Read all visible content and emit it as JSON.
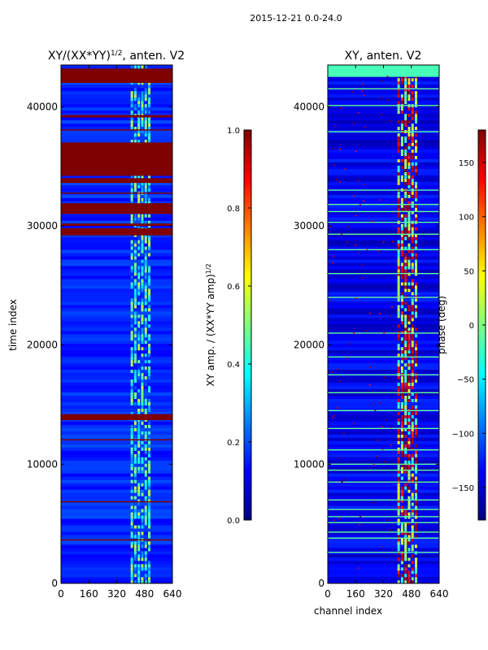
{
  "figure": {
    "suptitle": "2015-12-21 0.0-24.0"
  },
  "colors": {
    "jet": [
      "#00007f",
      "#0000ff",
      "#007fff",
      "#00ffff",
      "#7fff7f",
      "#ffff00",
      "#ff7f00",
      "#ff0000",
      "#7f0000"
    ],
    "background": "#ffffff"
  },
  "chart_data": [
    {
      "type": "heatmap",
      "title": "XY/(XX*YY)",
      "title_sup": "1/2",
      "title_suffix": ", anten. V2",
      "xlabel": "",
      "ylabel": "time index",
      "xlim": [
        0,
        640
      ],
      "ylim": [
        0,
        43500
      ],
      "xticks": [
        0,
        160,
        320,
        480,
        640
      ],
      "yticks": [
        0,
        10000,
        20000,
        30000,
        40000
      ],
      "base_level": 0.12,
      "bright_channel_range": [
        400,
        520
      ],
      "bright_level": 0.45,
      "saturated_bands": [
        [
          42000,
          43200
        ],
        [
          39100,
          39300
        ],
        [
          38000,
          38100
        ],
        [
          35000,
          35100
        ],
        [
          34200,
          37000
        ],
        [
          33600,
          34000
        ],
        [
          32700,
          32800
        ],
        [
          31000,
          31900
        ],
        [
          30000,
          30200
        ],
        [
          29200,
          29800
        ],
        [
          13700,
          14200
        ],
        [
          12000,
          12100
        ],
        [
          6800,
          6900
        ],
        [
          3600,
          3700
        ]
      ],
      "colorbar": {
        "label": "XY amp. / (XX*YY amp)",
        "label_sup": "1/2",
        "range": [
          0.0,
          1.0
        ],
        "ticks": [
          "0.0",
          "0.2",
          "0.4",
          "0.6",
          "0.8",
          "1.0"
        ]
      }
    },
    {
      "type": "heatmap",
      "title": "XY, anten. V2",
      "xlabel": "channel index",
      "ylabel": "",
      "xlim": [
        0,
        640
      ],
      "ylim": [
        0,
        43500
      ],
      "xticks": [
        0,
        160,
        320,
        480,
        640
      ],
      "yticks": [
        0,
        10000,
        20000,
        30000,
        40000
      ],
      "base_level": -150,
      "bright_channel_range": [
        400,
        520
      ],
      "bright_level": 40,
      "flag_lines": [
        41500,
        40100,
        37900,
        33000,
        31800,
        31200,
        30300,
        29300,
        28000,
        26000,
        24000,
        21000,
        19000,
        17500,
        16000,
        14500,
        13000,
        11200,
        10000,
        9500,
        8500,
        7000,
        6200,
        5600,
        5100,
        4300,
        3800,
        2600
      ],
      "top_band": [
        42500,
        43500
      ],
      "colorbar": {
        "label": "phase (deg)",
        "range": [
          -180,
          180
        ],
        "ticks": [
          "−150",
          "−100",
          "−50",
          "0",
          "50",
          "100",
          "150"
        ],
        "tick_values": [
          -150,
          -100,
          -50,
          0,
          50,
          100,
          150
        ]
      }
    }
  ]
}
